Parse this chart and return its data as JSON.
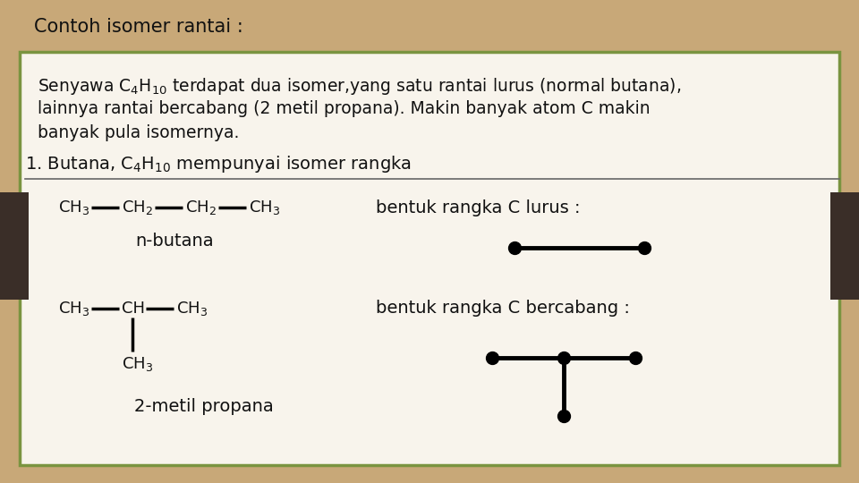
{
  "title": "Contoh isomer rantai :",
  "background_outer": "#c8a878",
  "background_inner": "#f8f4ec",
  "border_color": "#7a9440",
  "text_color": "#111111",
  "title_color": "#111111",
  "n_butana_label": "n-butana",
  "metil_label": "2-metil propana",
  "bentuk_lurus_label": "bentuk rangka C lurus :",
  "bentuk_cabang_label": "bentuk rangka C bercabang :"
}
